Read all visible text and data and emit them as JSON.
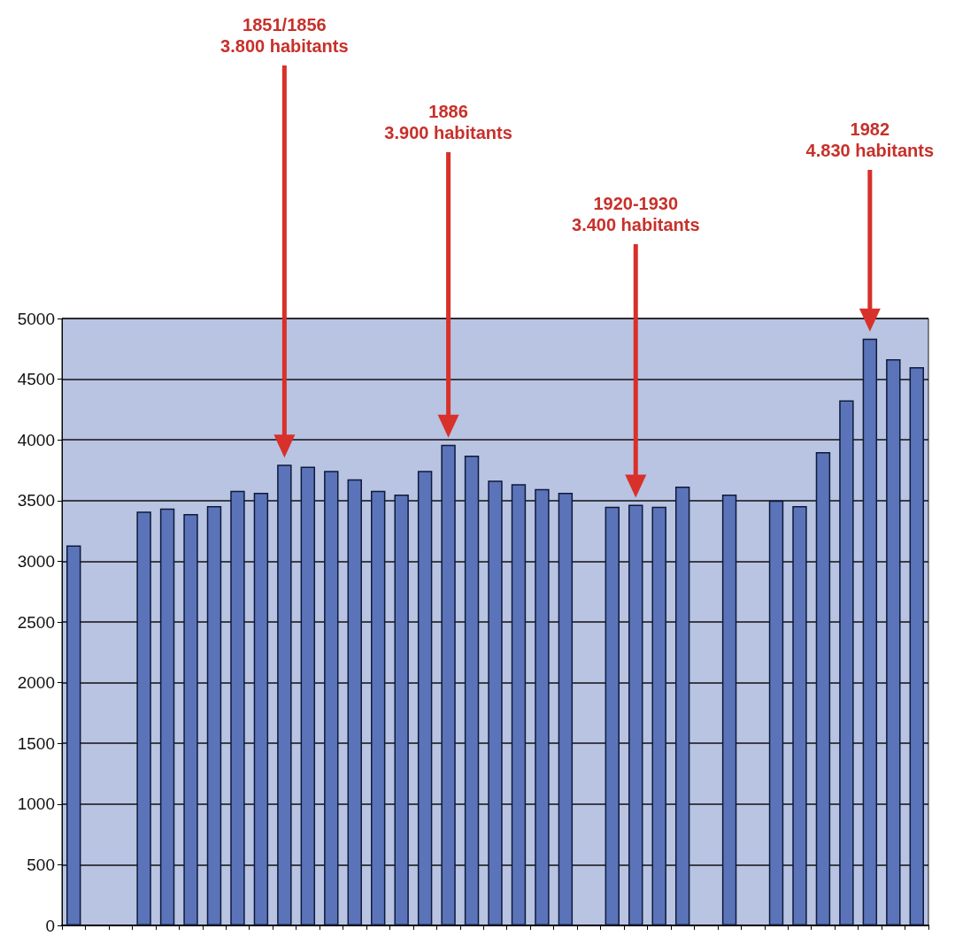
{
  "chart_data": {
    "type": "bar",
    "categories": [
      null,
      null,
      null,
      null,
      null,
      null,
      null,
      null,
      null,
      null,
      null,
      null,
      null,
      null,
      null,
      null,
      null,
      null,
      null,
      null,
      null,
      null,
      null,
      null,
      null,
      null,
      null,
      null,
      null,
      null,
      null,
      null,
      null,
      null,
      null,
      null,
      null
    ],
    "values": [
      3130,
      null,
      null,
      3410,
      3435,
      3390,
      3455,
      3580,
      3565,
      3795,
      3780,
      3745,
      3675,
      3580,
      3550,
      3745,
      3960,
      3870,
      3665,
      3635,
      3595,
      3565,
      null,
      3450,
      3465,
      3450,
      3615,
      null,
      3550,
      null,
      3500,
      3455,
      3900,
      4325,
      4835,
      4665,
      4600
    ],
    "color": "#5b74b9",
    "ylim": [
      0,
      5000
    ],
    "yticks": [
      0,
      500,
      1000,
      1500,
      2000,
      2500,
      3000,
      3500,
      4000,
      4500,
      5000
    ],
    "grid": "y",
    "tick_labels": "y",
    "annotations": [
      "1851/1856\n3.800 habitants",
      "1886\n3.900 habitants",
      "1920-1930\n3.400 habitants",
      "1982\n4.830 habitants"
    ]
  }
}
